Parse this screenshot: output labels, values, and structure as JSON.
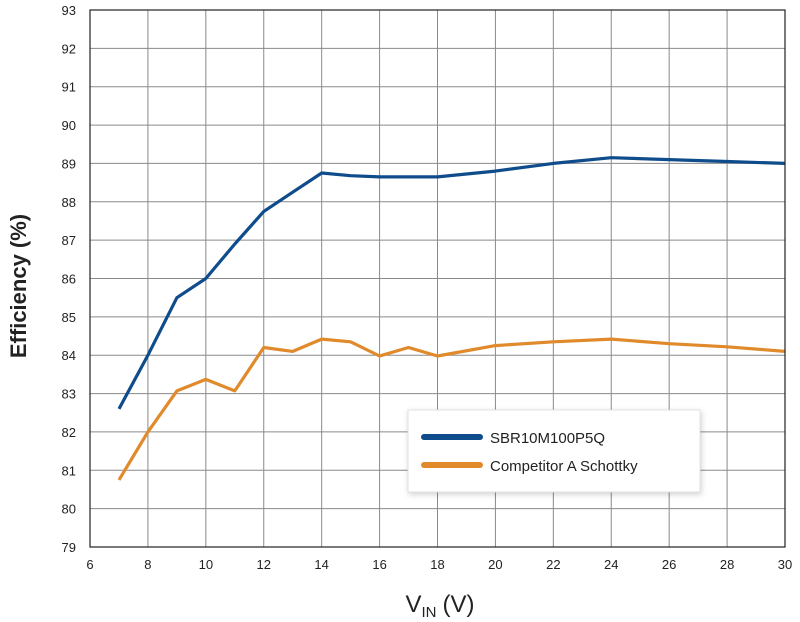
{
  "chart_data": {
    "type": "line",
    "title": "",
    "xlabel": "VIN (V)",
    "xlabel_main": "V",
    "xlabel_sub": "IN",
    "xlabel_unit": "(V)",
    "ylabel": "Efficiency (%)",
    "xlim": [
      6,
      30
    ],
    "ylim": [
      79,
      93
    ],
    "x_ticks": [
      "6",
      "8",
      "10",
      "12",
      "14",
      "16",
      "18",
      "20",
      "22",
      "24",
      "26",
      "28",
      "30"
    ],
    "y_ticks": [
      "79",
      "80",
      "81",
      "82",
      "83",
      "84",
      "85",
      "86",
      "87",
      "88",
      "89",
      "90",
      "91",
      "92",
      "93"
    ],
    "grid": true,
    "legend_position": "lower-right",
    "series": [
      {
        "name": "SBR10M100P5Q",
        "color": "#0f4c8c",
        "x": [
          7,
          8,
          9,
          10,
          11,
          12,
          13,
          14,
          15,
          16,
          17,
          18,
          20,
          22,
          24,
          26,
          28,
          30
        ],
        "y": [
          82.6,
          84.0,
          85.5,
          86.0,
          86.9,
          87.75,
          88.25,
          88.75,
          88.68,
          88.65,
          88.65,
          88.65,
          88.8,
          89.0,
          89.15,
          89.1,
          89.05,
          89.0
        ]
      },
      {
        "name": "Competitor A Schottky",
        "color": "#e08a2b",
        "x": [
          7,
          8,
          9,
          10,
          11,
          12,
          13,
          14,
          15,
          16,
          17,
          18,
          20,
          22,
          24,
          26,
          28,
          30
        ],
        "y": [
          80.75,
          82.0,
          83.07,
          83.37,
          83.07,
          84.2,
          84.1,
          84.42,
          84.35,
          83.98,
          84.2,
          83.98,
          84.25,
          84.35,
          84.42,
          84.3,
          84.22,
          84.1
        ]
      }
    ]
  }
}
